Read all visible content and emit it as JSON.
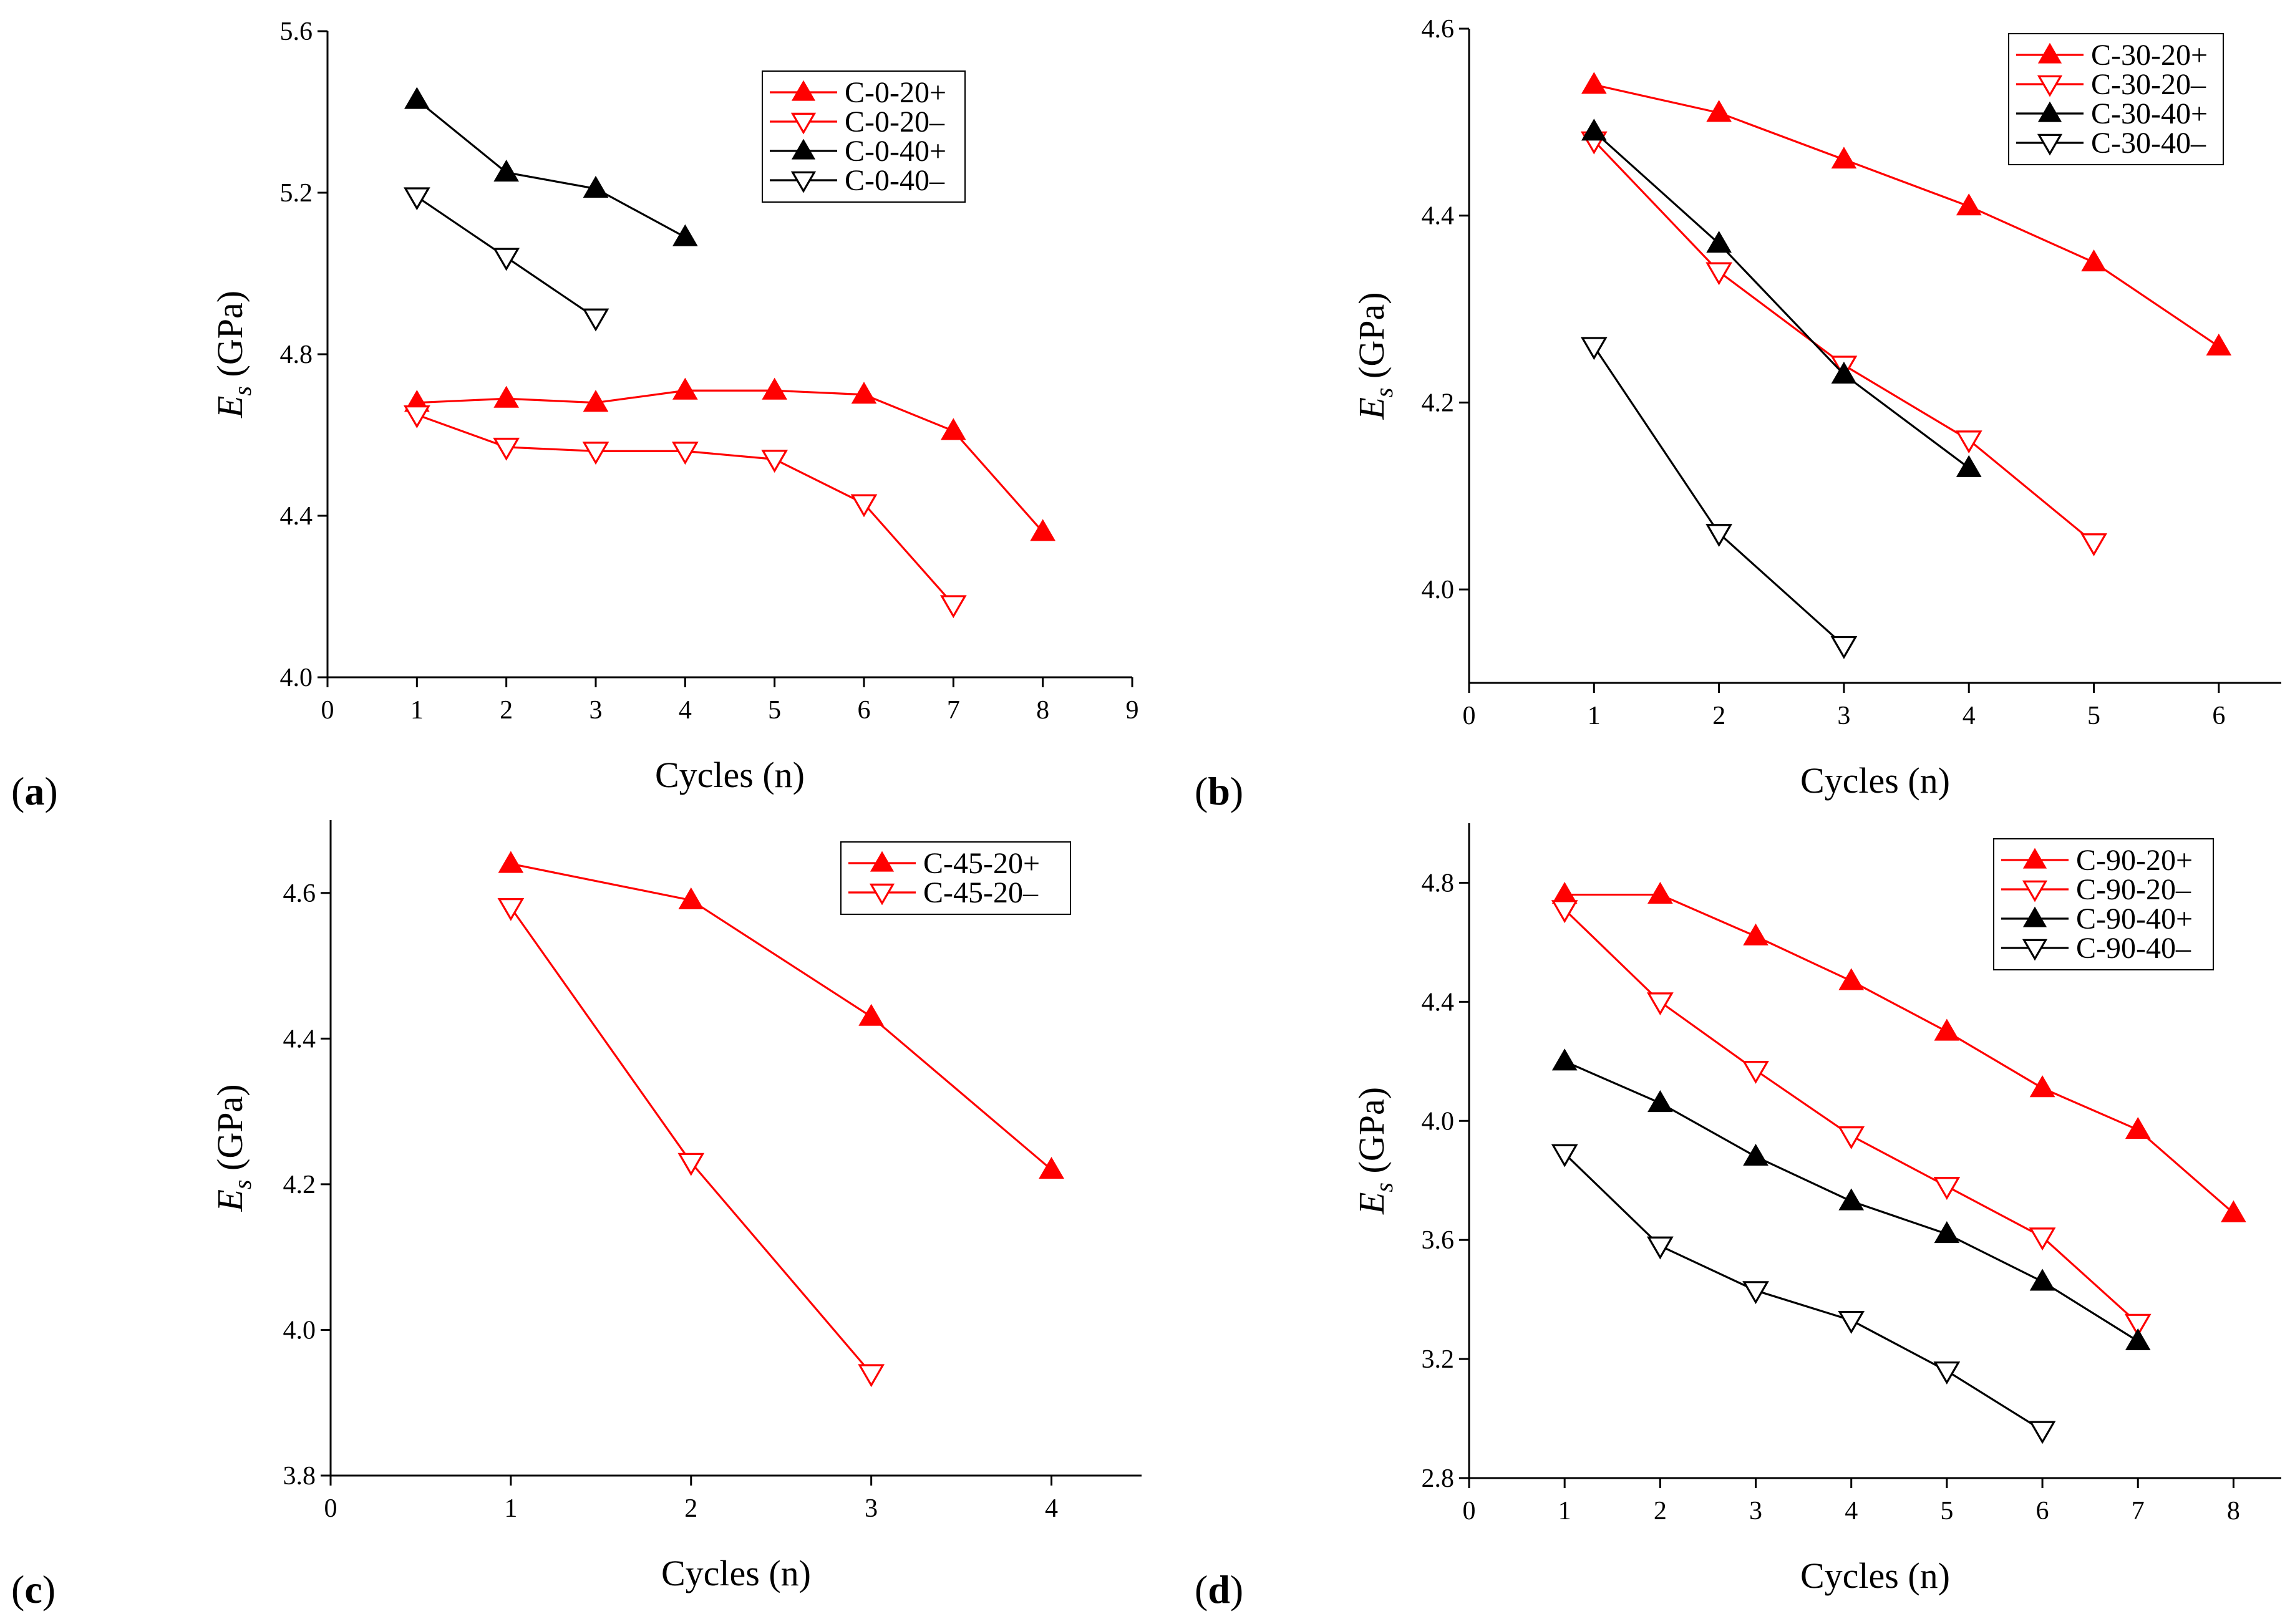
{
  "chart_data": [
    {
      "type": "line",
      "panel_label": "(a)",
      "xlabel": "Cycles (n)",
      "ylabel_main": "E",
      "ylabel_sub": "s",
      "ylabel_unit": " (GPa)",
      "xlim": [
        0,
        9
      ],
      "ylim": [
        4.0,
        5.6
      ],
      "xticks": [
        "0",
        "1",
        "2",
        "3",
        "4",
        "5",
        "6",
        "7",
        "8",
        "9"
      ],
      "yticks": [
        "4.0",
        "4.4",
        "4.8",
        "5.2",
        "5.6"
      ],
      "legend_position": "top-right",
      "series": [
        {
          "name": "C-0-20+",
          "color": "#ff0000",
          "marker": "triangle-up-filled",
          "x": [
            1,
            2,
            3,
            4,
            5,
            6,
            7,
            8
          ],
          "y": [
            4.68,
            4.69,
            4.68,
            4.71,
            4.71,
            4.7,
            4.61,
            4.36
          ]
        },
        {
          "name": "C-0-20–",
          "color": "#ff0000",
          "marker": "triangle-down-open",
          "x": [
            1,
            2,
            3,
            4,
            5,
            6,
            7
          ],
          "y": [
            4.65,
            4.57,
            4.56,
            4.56,
            4.54,
            4.43,
            4.18
          ]
        },
        {
          "name": "C-0-40+",
          "color": "#000000",
          "marker": "triangle-up-filled",
          "x": [
            1,
            2,
            3,
            4
          ],
          "y": [
            5.43,
            5.25,
            5.21,
            5.09
          ]
        },
        {
          "name": "C-0-40–",
          "color": "#000000",
          "marker": "triangle-down-open",
          "x": [
            1,
            2,
            3
          ],
          "y": [
            5.19,
            5.04,
            4.89
          ]
        }
      ]
    },
    {
      "type": "line",
      "panel_label": "(b)",
      "xlabel": "Cycles (n)",
      "ylabel_main": "E",
      "ylabel_sub": "s",
      "ylabel_unit": " (GPa)",
      "xlim": [
        0,
        6.5
      ],
      "ylim": [
        3.9,
        4.6
      ],
      "xticks": [
        "0",
        "1",
        "2",
        "3",
        "4",
        "5",
        "6"
      ],
      "yticks": [
        "4.0",
        "4.2",
        "4.4",
        "4.6"
      ],
      "legend_position": "top-right",
      "series": [
        {
          "name": "C-30-20+",
          "color": "#ff0000",
          "marker": "triangle-up-filled",
          "x": [
            1,
            2,
            3,
            4,
            5,
            6
          ],
          "y": [
            4.54,
            4.51,
            4.46,
            4.41,
            4.35,
            4.26
          ]
        },
        {
          "name": "C-30-20–",
          "color": "#ff0000",
          "marker": "triangle-down-open",
          "x": [
            1,
            2,
            3,
            4,
            5
          ],
          "y": [
            4.48,
            4.34,
            4.24,
            4.16,
            4.05
          ]
        },
        {
          "name": "C-30-40+",
          "color": "#000000",
          "marker": "triangle-up-filled",
          "x": [
            1,
            2,
            3,
            4
          ],
          "y": [
            4.49,
            4.37,
            4.23,
            4.13
          ]
        },
        {
          "name": "C-30-40–",
          "color": "#000000",
          "marker": "triangle-down-open",
          "x": [
            1,
            2,
            3
          ],
          "y": [
            4.26,
            4.06,
            3.94
          ]
        }
      ]
    },
    {
      "type": "line",
      "panel_label": "(c)",
      "xlabel": "Cycles (n)",
      "ylabel_main": "E",
      "ylabel_sub": "s",
      "ylabel_unit": " (GPa)",
      "xlim": [
        0,
        4.5
      ],
      "ylim": [
        3.8,
        4.7
      ],
      "xticks": [
        "0",
        "1",
        "2",
        "3",
        "4"
      ],
      "yticks": [
        "3.8",
        "4.0",
        "4.2",
        "4.4",
        "4.6"
      ],
      "legend_position": "top-right",
      "series": [
        {
          "name": "C-45-20+",
          "color": "#ff0000",
          "marker": "triangle-up-filled",
          "x": [
            1,
            2,
            3,
            4
          ],
          "y": [
            4.64,
            4.59,
            4.43,
            4.22
          ]
        },
        {
          "name": "C-45-20–",
          "color": "#ff0000",
          "marker": "triangle-down-open",
          "x": [
            1,
            2,
            3
          ],
          "y": [
            4.58,
            4.23,
            3.94
          ]
        }
      ]
    },
    {
      "type": "line",
      "panel_label": "(d)",
      "xlabel": "Cycles (n)",
      "ylabel_main": "E",
      "ylabel_sub": "s",
      "ylabel_unit": " (GPa)",
      "xlim": [
        0,
        8.5
      ],
      "ylim": [
        2.8,
        5.0
      ],
      "xticks": [
        "0",
        "1",
        "2",
        "3",
        "4",
        "5",
        "6",
        "7",
        "8"
      ],
      "yticks": [
        "2.8",
        "3.2",
        "3.6",
        "4.0",
        "4.4",
        "4.8"
      ],
      "legend_position": "top-right",
      "series": [
        {
          "name": "C-90-20+",
          "color": "#ff0000",
          "marker": "triangle-up-filled",
          "x": [
            1,
            2,
            3,
            4,
            5,
            6,
            7,
            8
          ],
          "y": [
            4.76,
            4.76,
            4.62,
            4.47,
            4.3,
            4.11,
            3.97,
            3.69
          ]
        },
        {
          "name": "C-90-20–",
          "color": "#ff0000",
          "marker": "triangle-down-open",
          "x": [
            1,
            2,
            3,
            4,
            5,
            6,
            7
          ],
          "y": [
            4.71,
            4.4,
            4.17,
            3.95,
            3.78,
            3.61,
            3.32
          ]
        },
        {
          "name": "C-90-40+",
          "color": "#000000",
          "marker": "triangle-up-filled",
          "x": [
            1,
            2,
            3,
            4,
            5,
            6,
            7
          ],
          "y": [
            4.2,
            4.06,
            3.88,
            3.73,
            3.62,
            3.46,
            3.26
          ]
        },
        {
          "name": "C-90-40–",
          "color": "#000000",
          "marker": "triangle-down-open",
          "x": [
            1,
            2,
            3,
            4,
            5,
            6
          ],
          "y": [
            3.89,
            3.58,
            3.43,
            3.33,
            3.16,
            2.96
          ]
        }
      ]
    }
  ]
}
